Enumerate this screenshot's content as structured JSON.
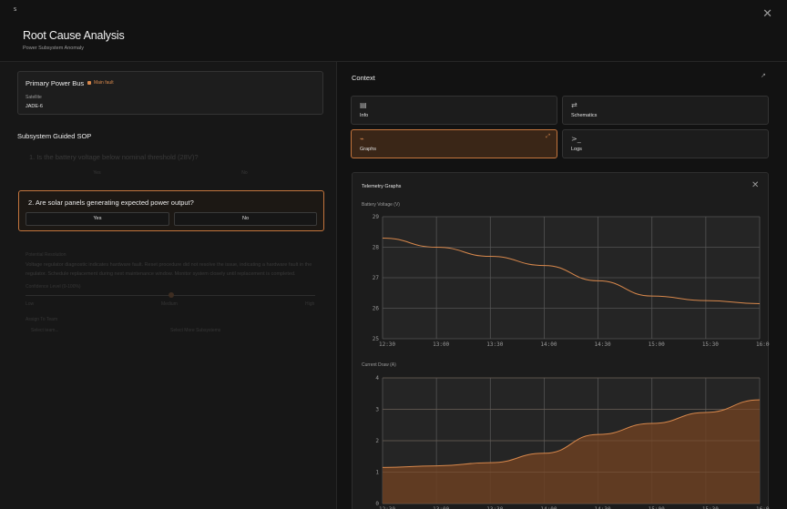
{
  "header": {
    "logo_text": "S",
    "title": "Root Cause Analysis",
    "subtitle": "Power Subsystem Anomaly",
    "close_icon": "close-icon"
  },
  "asset_card": {
    "title": "Primary Power Bus",
    "badge": "Main fault",
    "satellite_label": "Satellite",
    "satellite_value": "JADE-6"
  },
  "sop": {
    "section_title": "Subsystem Guided SOP",
    "q1": {
      "text": "1. Is the battery voltage below nominal threshold (28V)?",
      "yes": "Yes",
      "no": "No"
    },
    "q2": {
      "text": "2. Are solar panels generating expected power output?",
      "yes": "Yes",
      "no": "No"
    }
  },
  "recommendation": {
    "label": "Potential Resolution",
    "text": "Voltage regulator diagnostic indicates hardware fault. Reset procedure did not resolve the issue, indicating a hardware fault in the regulator. Schedule replacement during next maintenance window. Monitor system closely until replacement is completed.",
    "confidence_label": "Confidence Level (0-100%)",
    "ticks": [
      "Low",
      "Medium",
      "High"
    ],
    "assign_label": "Assign To Team",
    "select_placeholder": "Select team...",
    "select_more": "Select More Subsystems"
  },
  "context": {
    "title": "Context",
    "open_icon": "external-link-icon",
    "tiles": [
      {
        "label": "Info",
        "icon": "document-icon"
      },
      {
        "label": "Schematics",
        "icon": "schematic-icon"
      },
      {
        "label": "Graphs",
        "icon": "graph-icon",
        "active": true
      },
      {
        "label": "Logs",
        "icon": "terminal-icon"
      }
    ]
  },
  "telemetry": {
    "title": "Telemetry Graphs",
    "colors": {
      "accent": "#d8884c",
      "fill": "#6b3f22",
      "plot_bg": "#252525",
      "grid": "#555555"
    }
  },
  "chart_data": [
    {
      "type": "line",
      "title": "Battery Voltage (V)",
      "x": [
        "12:30",
        "13:00",
        "13:30",
        "14:00",
        "14:30",
        "15:00",
        "15:30",
        "16:00"
      ],
      "y": [
        28.3,
        28.0,
        27.7,
        27.4,
        26.9,
        26.4,
        26.25,
        26.15
      ],
      "yticks": [
        25,
        26,
        27,
        28,
        29
      ],
      "ylim": [
        25,
        29
      ],
      "grid": true
    },
    {
      "type": "area",
      "title": "Current Draw (A)",
      "x": [
        "12:30",
        "13:00",
        "13:30",
        "14:00",
        "14:30",
        "15:00",
        "15:30",
        "16:00"
      ],
      "y": [
        1.15,
        1.2,
        1.3,
        1.6,
        2.2,
        2.55,
        2.9,
        3.3
      ],
      "yticks": [
        0,
        1,
        2,
        3,
        4
      ],
      "ylim": [
        0,
        4
      ],
      "grid": true
    }
  ]
}
